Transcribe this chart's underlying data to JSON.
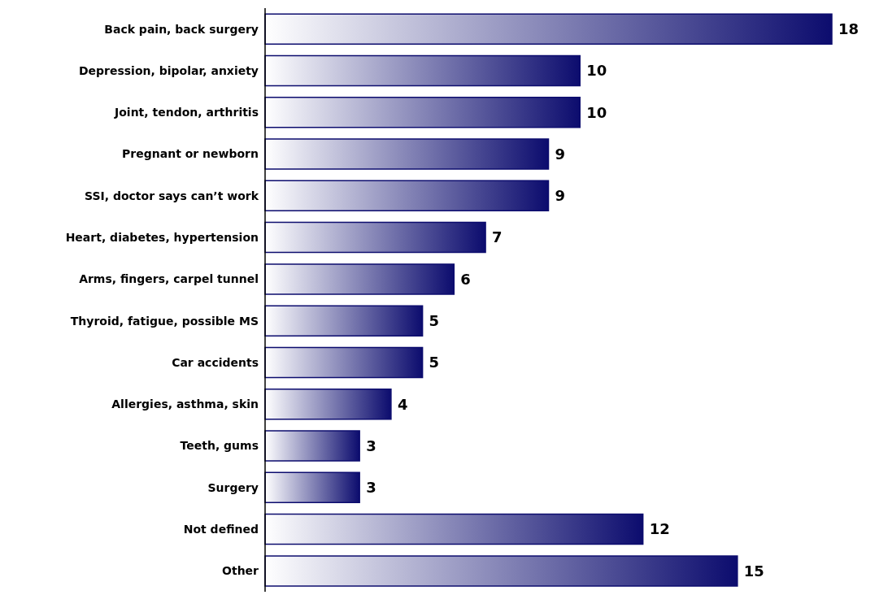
{
  "chart_data": {
    "type": "bar",
    "orientation": "horizontal",
    "categories": [
      "Back pain, back surgery",
      "Depression, bipolar, anxiety",
      "Joint, tendon, arthritis",
      "Pregnant or newborn",
      "SSI, doctor says can’t work",
      "Heart, diabetes, hypertension",
      "Arms, fingers, carpel tunnel",
      "Thyroid, fatigue, possible MS",
      "Car accidents",
      "Allergies, asthma, skin",
      "Teeth, gums",
      "Surgery",
      "Not defined",
      "Other"
    ],
    "values": [
      18,
      10,
      10,
      9,
      9,
      7,
      6,
      5,
      5,
      4,
      3,
      3,
      12,
      15
    ],
    "color": "#0c0c6e",
    "data_labels": true,
    "grid": false,
    "legend": false
  }
}
